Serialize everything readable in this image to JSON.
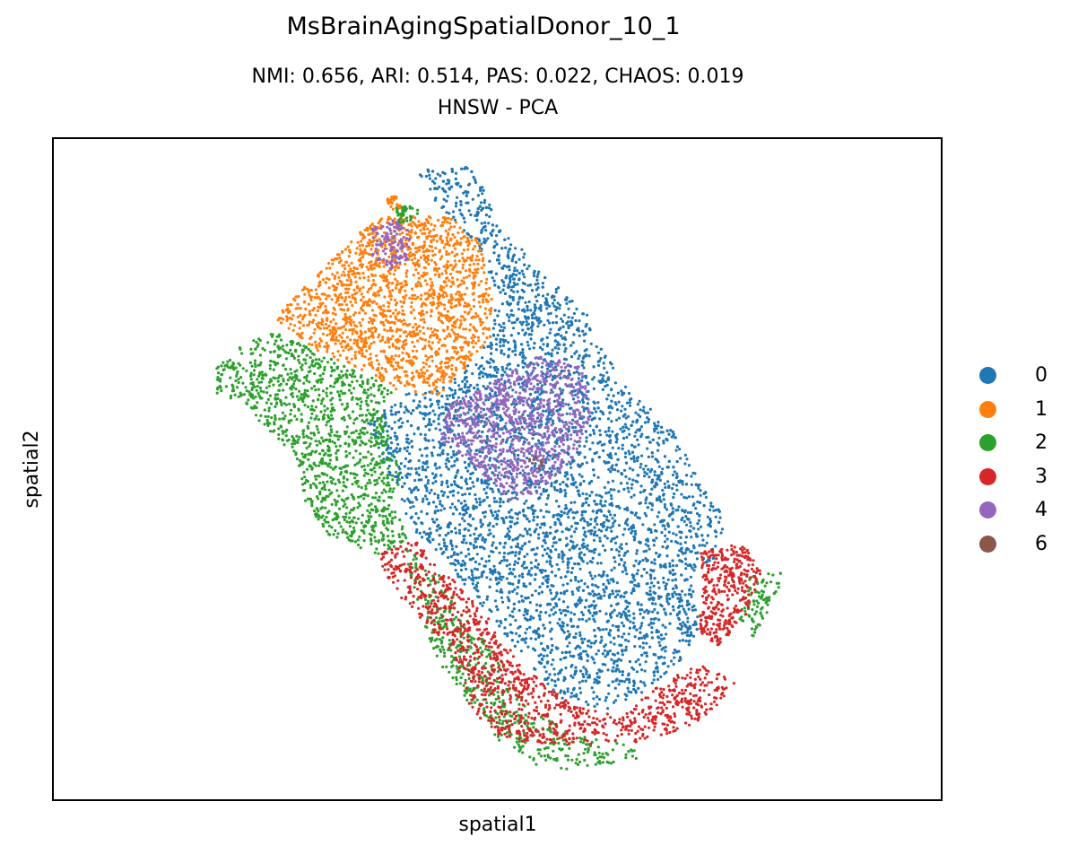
{
  "chart_data": {
    "type": "scatter",
    "title": "MsBrainAgingSpatialDonor_10_1",
    "subtitle_line1": "NMI: 0.656,  ARI: 0.514,  PAS: 0.022,  CHAOS: 0.019",
    "subtitle_line2": "HNSW - PCA",
    "xlabel": "spatial1",
    "ylabel": "spatial2",
    "legend_placement": "right",
    "grid": false,
    "ticks": false,
    "series": [
      {
        "name": "0",
        "color": "#1f77b4"
      },
      {
        "name": "1",
        "color": "#ff7f0e"
      },
      {
        "name": "2",
        "color": "#2ca02c"
      },
      {
        "name": "3",
        "color": "#d62728"
      },
      {
        "name": "4",
        "color": "#9467bd"
      },
      {
        "name": "6",
        "color": "#8c564b"
      }
    ]
  }
}
